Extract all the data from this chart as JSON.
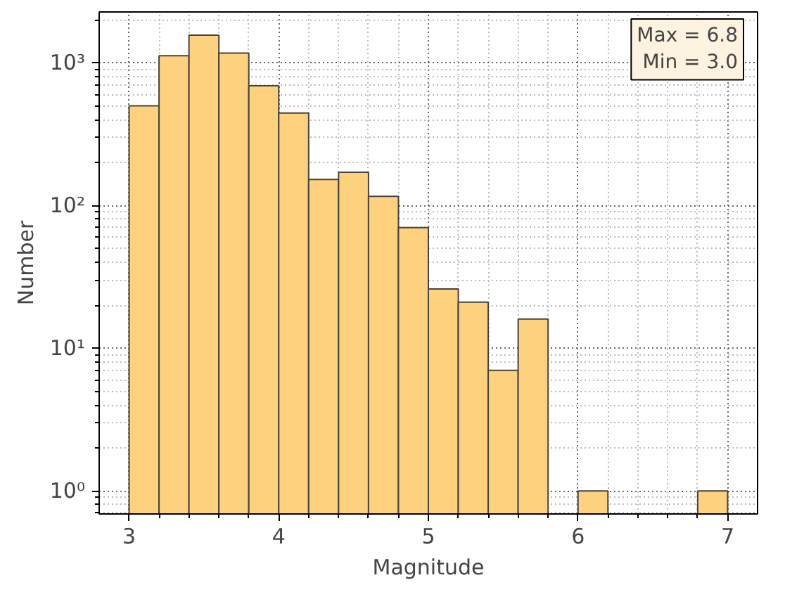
{
  "chart_data": {
    "type": "histogram",
    "xlabel": "Magnitude",
    "ylabel": "Number",
    "bins": [
      3.0,
      3.2,
      3.4,
      3.6,
      3.8,
      4.0,
      4.2,
      4.4,
      4.6,
      4.8,
      5.0,
      5.2,
      5.4,
      5.6,
      5.8,
      6.0,
      6.2,
      6.4,
      6.6,
      6.8,
      7.0
    ],
    "values": [
      500,
      1120,
      1560,
      1170,
      690,
      445,
      152,
      171,
      116,
      70,
      26,
      21,
      7,
      16,
      null,
      1,
      null,
      null,
      null,
      1
    ],
    "color": "#fdd17e",
    "log": "y",
    "xlim": [
      2.8,
      7.2
    ],
    "ylim": [
      0.69,
      2270
    ],
    "xticks": [
      3,
      4,
      5,
      6,
      7
    ],
    "yticks": [
      {
        "value": 1,
        "label": "10⁰"
      },
      {
        "value": 10,
        "label": "10¹"
      },
      {
        "value": 100,
        "label": "10²"
      },
      {
        "value": 1000,
        "label": "10³"
      }
    ],
    "grid": true,
    "annotations": [
      "Max = 6.8\nMin = 3.0"
    ]
  }
}
